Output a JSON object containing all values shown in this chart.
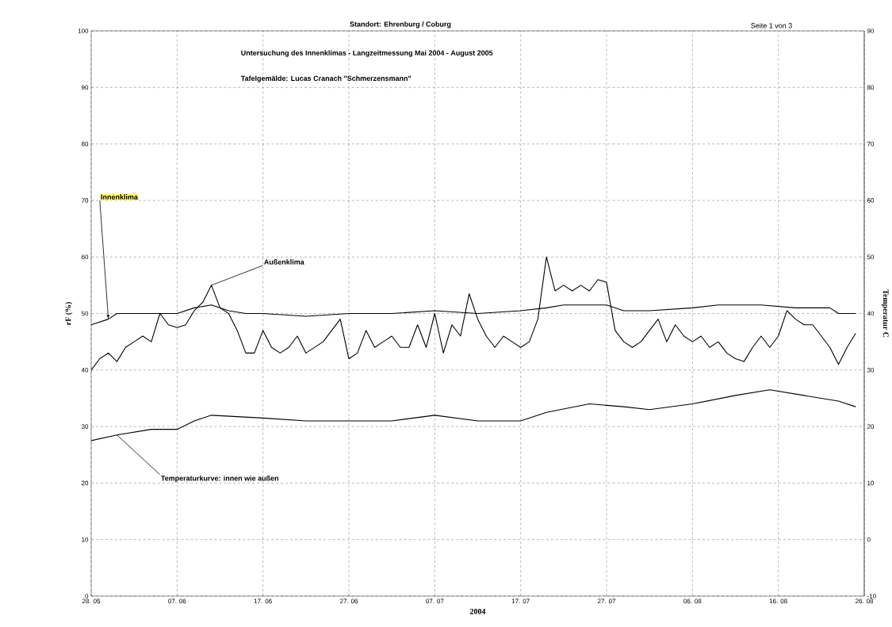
{
  "chart_data": {
    "type": "line",
    "title": "Standort: Ehrenburg / Coburg",
    "subtitle": "Untersuchung des Innenklimas    -    Langzeitmessung Mai 2004 - August 2005",
    "xlabel": "2004",
    "ylabel": "rF (%)",
    "y2label": "Temperatur  C",
    "xlim": [
      "2004-05-28",
      "2004-08-26"
    ],
    "xticks": [
      {
        "value": "2004-05-28",
        "label": "28. 05"
      },
      {
        "value": "2004-06-07",
        "label": "07. 06"
      },
      {
        "value": "2004-06-17",
        "label": "17. 06"
      },
      {
        "value": "2004-06-27",
        "label": "27. 06"
      },
      {
        "value": "2004-07-07",
        "label": "07. 07"
      },
      {
        "value": "2004-07-17",
        "label": "17. 07"
      },
      {
        "value": "2004-07-27",
        "label": "27. 07"
      },
      {
        "value": "2004-08-06",
        "label": "06. 08"
      },
      {
        "value": "2004-08-16",
        "label": "16. 08"
      },
      {
        "value": "2004-08-26",
        "label": "26. 08"
      }
    ],
    "ylim": [
      0,
      100
    ],
    "yticks": [
      0,
      10,
      20,
      30,
      40,
      50,
      60,
      70,
      80,
      90,
      100
    ],
    "y2lim": [
      -10,
      90
    ],
    "y2ticks": [
      -10,
      0,
      10,
      20,
      30,
      40,
      50,
      60,
      70,
      80,
      90
    ],
    "grid": true,
    "series": [
      {
        "color": "#000000",
        "x": [
          "2004-05-28",
          "2004-05-30",
          "2004-05-31",
          "2004-06-02",
          "2004-06-05",
          "2004-06-07",
          "2004-06-09",
          "2004-06-11",
          "2004-06-13",
          "2004-06-15",
          "2004-06-17",
          "2004-06-22",
          "2004-06-27",
          "2004-07-02",
          "2004-07-07",
          "2004-07-12",
          "2004-07-17",
          "2004-07-20",
          "2004-07-22",
          "2004-07-27",
          "2004-07-29",
          "2004-08-01",
          "2004-08-06",
          "2004-08-09",
          "2004-08-14",
          "2004-08-18",
          "2004-08-22",
          "2004-08-23",
          "2004-08-25"
        ],
        "values": [
          48,
          49,
          50,
          50,
          50,
          50,
          51,
          51.5,
          50.5,
          50,
          50,
          49.5,
          50,
          50,
          50.5,
          50,
          50.5,
          51,
          51.5,
          51.5,
          50.5,
          50.5,
          51,
          51.5,
          51.5,
          51,
          51,
          50,
          50
        ]
      },
      {
        "color": "#000000",
        "x": [
          "2004-05-28",
          "2004-05-29",
          "2004-05-30",
          "2004-05-31",
          "2004-06-01",
          "2004-06-02",
          "2004-06-03",
          "2004-06-04",
          "2004-06-05",
          "2004-06-06",
          "2004-06-07",
          "2004-06-08",
          "2004-06-09",
          "2004-06-10",
          "2004-06-11",
          "2004-06-12",
          "2004-06-13",
          "2004-06-14",
          "2004-06-15",
          "2004-06-16",
          "2004-06-17",
          "2004-06-18",
          "2004-06-19",
          "2004-06-20",
          "2004-06-21",
          "2004-06-22",
          "2004-06-23",
          "2004-06-24",
          "2004-06-25",
          "2004-06-26",
          "2004-06-27",
          "2004-06-28",
          "2004-06-29",
          "2004-06-30",
          "2004-07-01",
          "2004-07-02",
          "2004-07-03",
          "2004-07-04",
          "2004-07-05",
          "2004-07-06",
          "2004-07-07",
          "2004-07-08",
          "2004-07-09",
          "2004-07-10",
          "2004-07-11",
          "2004-07-12",
          "2004-07-13",
          "2004-07-14",
          "2004-07-15",
          "2004-07-16",
          "2004-07-17",
          "2004-07-18",
          "2004-07-19",
          "2004-07-20",
          "2004-07-21",
          "2004-07-22",
          "2004-07-23",
          "2004-07-24",
          "2004-07-25",
          "2004-07-26",
          "2004-07-27",
          "2004-07-28",
          "2004-07-29",
          "2004-07-30",
          "2004-07-31",
          "2004-08-01",
          "2004-08-02",
          "2004-08-03",
          "2004-08-04",
          "2004-08-05",
          "2004-08-06",
          "2004-08-07",
          "2004-08-08",
          "2004-08-09",
          "2004-08-10",
          "2004-08-11",
          "2004-08-12",
          "2004-08-13",
          "2004-08-14",
          "2004-08-15",
          "2004-08-16",
          "2004-08-17",
          "2004-08-18",
          "2004-08-19",
          "2004-08-20",
          "2004-08-21",
          "2004-08-22",
          "2004-08-23",
          "2004-08-24",
          "2004-08-25"
        ],
        "values": [
          40,
          42,
          43,
          41.5,
          44,
          45,
          46,
          45,
          50,
          48,
          47.5,
          48,
          50.5,
          52,
          55,
          51,
          50,
          47,
          43,
          43,
          47,
          44,
          43,
          44,
          46,
          43,
          44,
          45,
          47,
          49,
          42,
          43,
          47,
          44,
          45,
          46,
          44,
          44,
          48,
          44,
          50,
          43,
          48,
          46,
          53.5,
          49,
          46,
          44,
          46,
          45,
          44,
          45,
          49,
          60,
          54,
          55,
          54,
          55,
          54,
          56,
          55.5,
          47,
          45,
          44,
          45,
          47,
          49,
          45,
          48,
          46,
          45,
          46,
          44,
          45,
          43,
          42,
          41.5,
          44,
          46,
          44,
          46,
          50.5,
          49,
          48,
          48,
          46,
          44,
          41,
          44,
          46.5
        ]
      },
      {
        "color": "#000000",
        "axis": "y2",
        "x": [
          "2004-05-28",
          "2004-05-31",
          "2004-06-04",
          "2004-06-07",
          "2004-06-09",
          "2004-06-11",
          "2004-06-17",
          "2004-06-22",
          "2004-06-27",
          "2004-07-02",
          "2004-07-07",
          "2004-07-12",
          "2004-07-17",
          "2004-07-20",
          "2004-07-25",
          "2004-07-29",
          "2004-08-01",
          "2004-08-06",
          "2004-08-11",
          "2004-08-15",
          "2004-08-19",
          "2004-08-23",
          "2004-08-25"
        ],
        "values": [
          17.5,
          18.5,
          19.5,
          19.5,
          21,
          22,
          21.5,
          21,
          21,
          21,
          22,
          21,
          21,
          22.5,
          24,
          23.5,
          23,
          24,
          25.5,
          26.5,
          25.5,
          24.5,
          23.5
        ]
      }
    ],
    "annotations": [
      {
        "text": "Innenklima",
        "x": "2004-05-30",
        "y": 49
      },
      {
        "text": "Außenklima",
        "x": "2004-06-11",
        "y": 55
      },
      {
        "text": "Temperaturkurve: innen wie außen",
        "x": "2004-05-31",
        "y": 28.5
      },
      "Tafelgemälde: Lucas Cranach \"Schmerzensmann\"",
      "Seite 1 von 3"
    ]
  }
}
